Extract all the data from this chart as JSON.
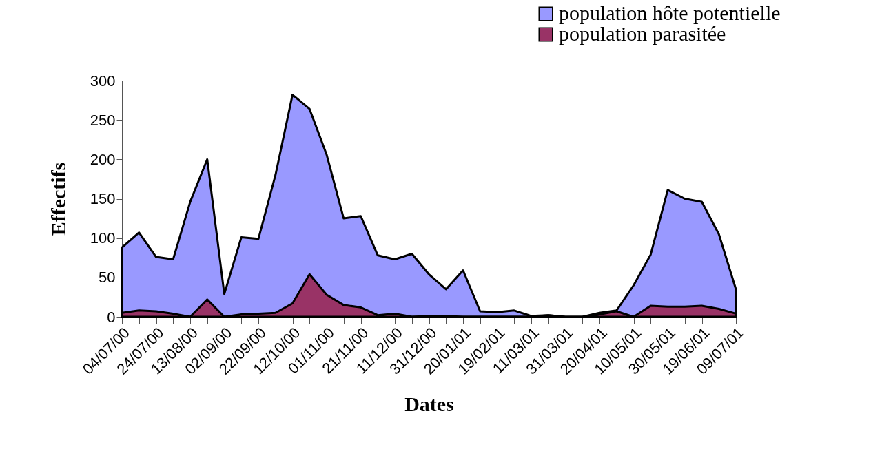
{
  "chart_data": {
    "type": "area",
    "xlabel": "Dates",
    "ylabel": "Effectifs",
    "categories": [
      "04/07/00",
      null,
      "24/07/00",
      null,
      "13/08/00",
      null,
      "02/09/00",
      null,
      "22/09/00",
      null,
      "12/10/00",
      null,
      "01/11/00",
      null,
      "21/11/00",
      null,
      "11/12/00",
      null,
      "31/12/00",
      null,
      "20/01/01",
      null,
      "19/02/01",
      null,
      "11/03/01",
      null,
      "31/03/01",
      null,
      "20/04/01",
      null,
      "10/05/01",
      null,
      "30/05/01",
      null,
      "19/06/01",
      null,
      "09/07/01"
    ],
    "series": [
      {
        "name": "population hôte potentielle",
        "color": "#9999ff",
        "values": [
          88,
          107,
          76,
          73,
          146,
          200,
          29,
          101,
          99,
          180,
          282,
          264,
          206,
          125,
          128,
          78,
          73,
          80,
          54,
          35,
          59,
          7,
          6,
          8,
          1,
          2,
          0,
          0,
          5,
          8,
          40,
          79,
          161,
          150,
          146,
          105,
          35
        ]
      },
      {
        "name": "population parasitée",
        "color": "#993366",
        "values": [
          5,
          8,
          7,
          4,
          0,
          22,
          0,
          3,
          4,
          5,
          17,
          54,
          28,
          15,
          12,
          2,
          4,
          0,
          1,
          1,
          0,
          0,
          0,
          0,
          0,
          2,
          0,
          0,
          3,
          7,
          0,
          14,
          13,
          13,
          14,
          10,
          4
        ]
      }
    ],
    "ylim": [
      0,
      300
    ],
    "yticks": [
      0,
      50,
      100,
      150,
      200,
      250,
      300
    ],
    "grid": false,
    "legend": "top right"
  }
}
